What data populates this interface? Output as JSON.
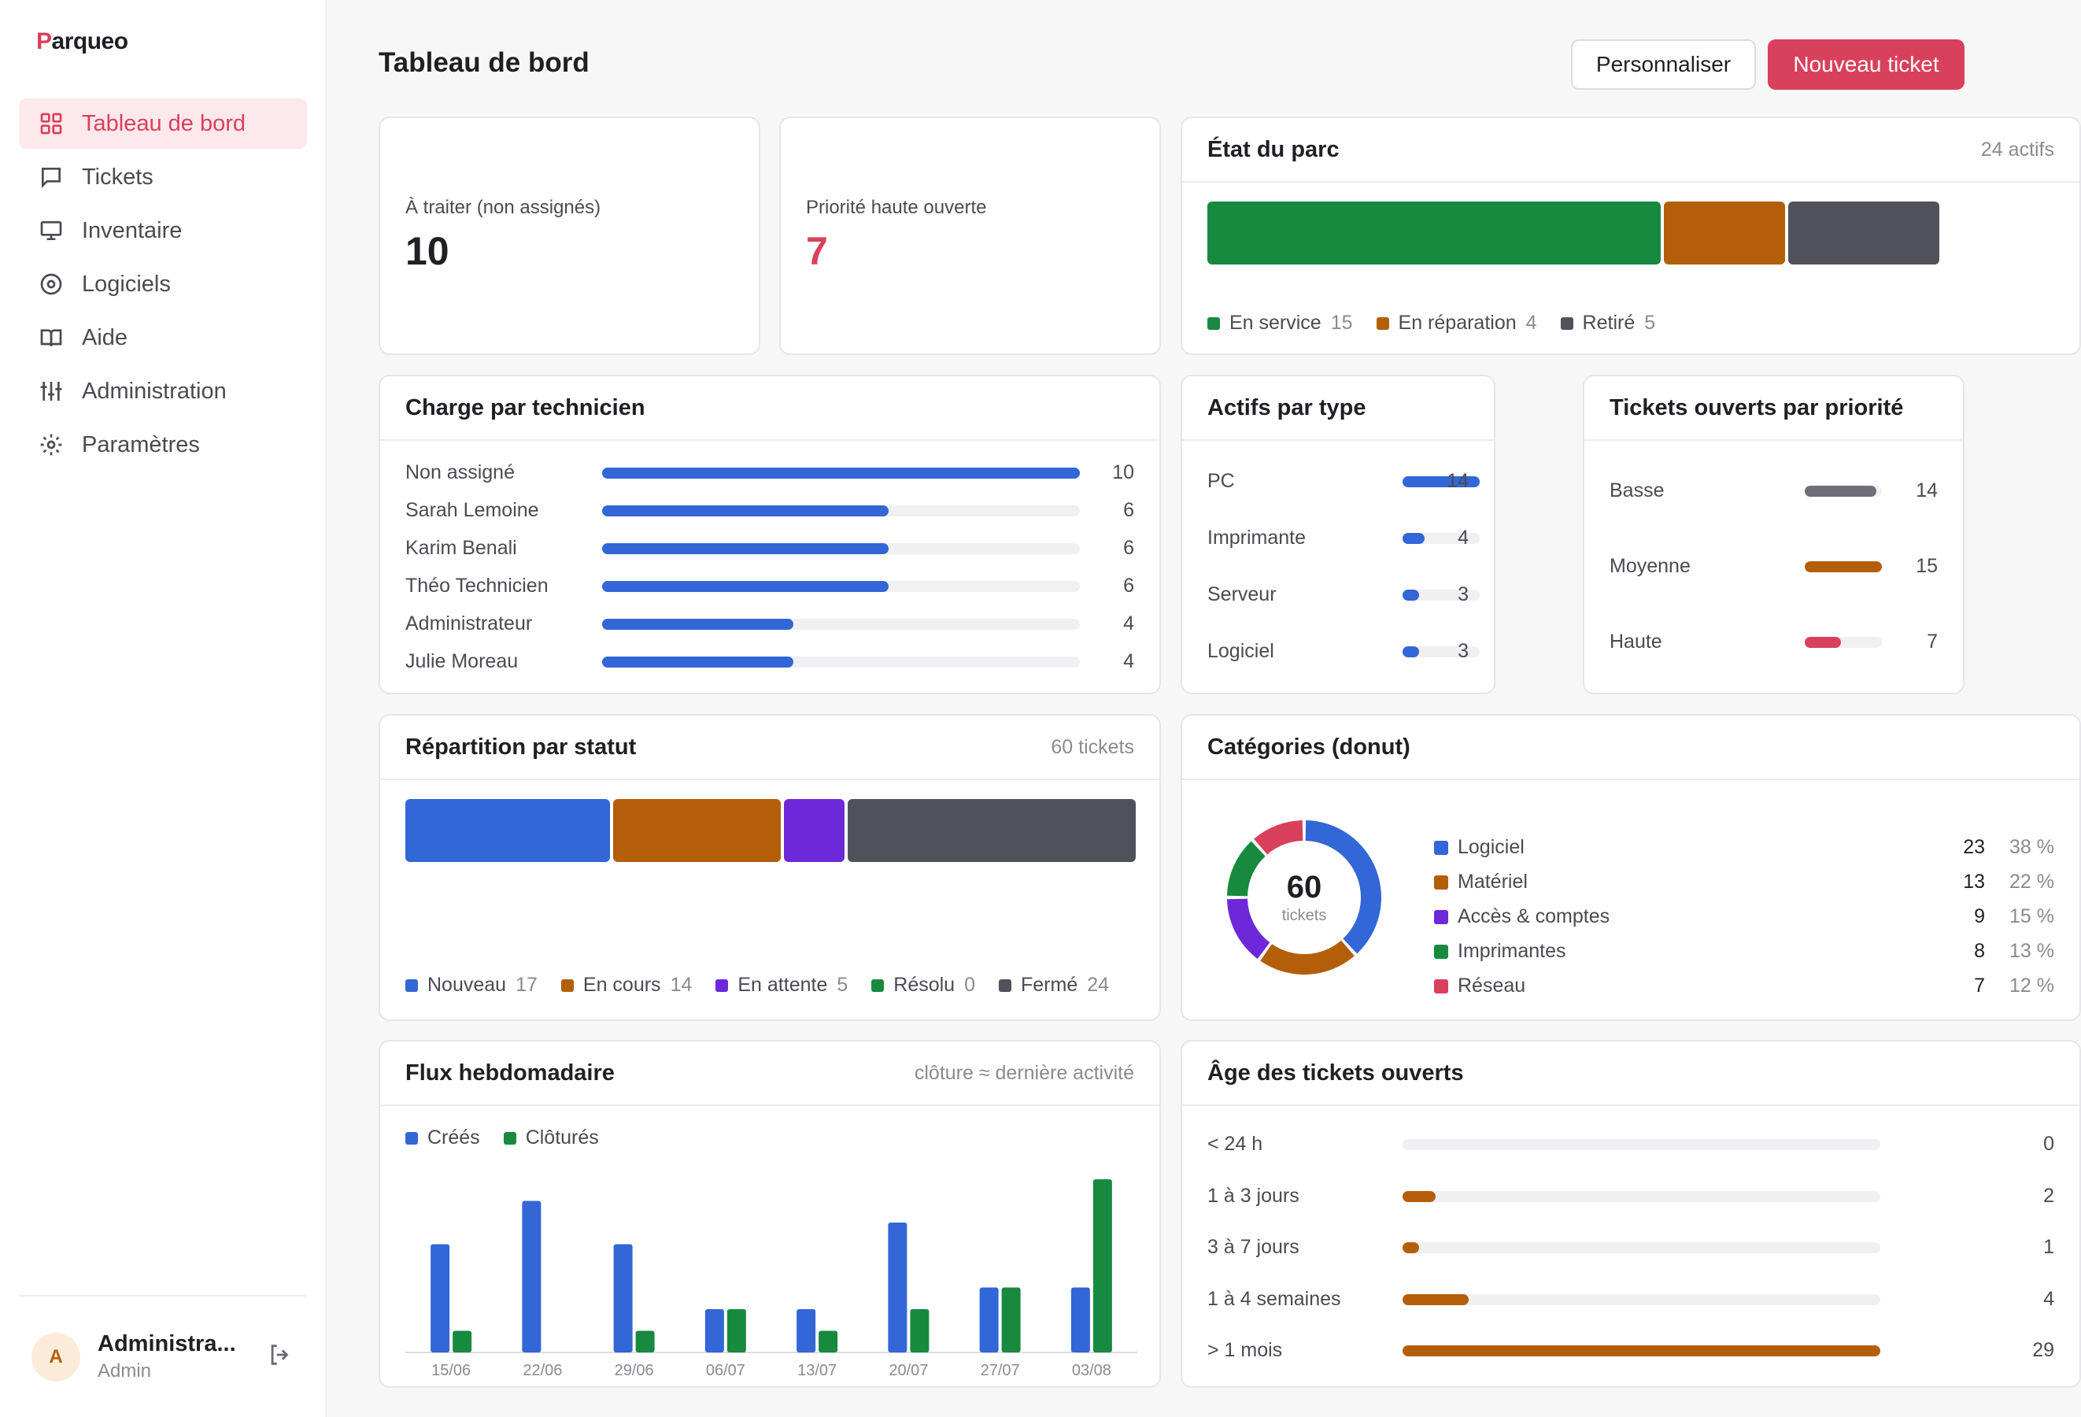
{
  "brand": {
    "mark": "P",
    "rest": "arqueo"
  },
  "nav": [
    {
      "label": "Tableau de bord",
      "icon": "grid-icon",
      "active": true
    },
    {
      "label": "Tickets",
      "icon": "chat-icon",
      "active": false
    },
    {
      "label": "Inventaire",
      "icon": "monitor-icon",
      "active": false
    },
    {
      "label": "Logiciels",
      "icon": "disc-icon",
      "active": false
    },
    {
      "label": "Aide",
      "icon": "book-icon",
      "active": false
    },
    {
      "label": "Administration",
      "icon": "sliders-icon",
      "active": false
    },
    {
      "label": "Paramètres",
      "icon": "gear-icon",
      "active": false
    }
  ],
  "user": {
    "initial": "A",
    "name": "Administra...",
    "role": "Admin"
  },
  "header": {
    "title": "Tableau de bord",
    "customize": "Personnaliser",
    "new_ticket": "Nouveau ticket"
  },
  "colors": {
    "accent": "#d9405c",
    "blue": "#3366d6",
    "orange": "#b35f0a",
    "purple": "#6d28d9",
    "green": "#178a3f",
    "gray": "#51515b"
  },
  "kpi": {
    "unassigned": {
      "label": "À traiter (non assignés)",
      "value": "10"
    },
    "high": {
      "label": "Priorité haute ouverte",
      "value": "7"
    }
  },
  "fleet": {
    "title": "État du parc",
    "meta": "24 actifs",
    "segments": [
      {
        "label": "En service",
        "count": 15,
        "color": "#178a3f"
      },
      {
        "label": "En réparation",
        "count": 4,
        "color": "#b35f0a"
      },
      {
        "label": "Retiré",
        "count": 5,
        "color": "#51515b"
      }
    ]
  },
  "workload": {
    "title": "Charge par technicien",
    "max": 10,
    "rows": [
      {
        "label": "Non assigné",
        "value": 10
      },
      {
        "label": "Sarah Lemoine",
        "value": 6
      },
      {
        "label": "Karim Benali",
        "value": 6
      },
      {
        "label": "Théo Technicien",
        "value": 6
      },
      {
        "label": "Administrateur",
        "value": 4
      },
      {
        "label": "Julie Moreau",
        "value": 4
      }
    ]
  },
  "assets_by_type": {
    "title": "Actifs par type",
    "max": 14,
    "rows": [
      {
        "label": "PC",
        "value": 14
      },
      {
        "label": "Imprimante",
        "value": 4
      },
      {
        "label": "Serveur",
        "value": 3
      },
      {
        "label": "Logiciel",
        "value": 3
      }
    ]
  },
  "priority": {
    "title": "Tickets ouverts par priorité",
    "max": 15,
    "rows": [
      {
        "label": "Basse",
        "value": 14,
        "color": "#6e6e78"
      },
      {
        "label": "Moyenne",
        "value": 15,
        "color": "#b35f0a"
      },
      {
        "label": "Haute",
        "value": 7,
        "color": "#d9405c"
      }
    ]
  },
  "status": {
    "title": "Répartition par statut",
    "meta": "60 tickets",
    "segments": [
      {
        "label": "Nouveau",
        "count": 17,
        "color": "#3366d6"
      },
      {
        "label": "En cours",
        "count": 14,
        "color": "#b35f0a"
      },
      {
        "label": "En attente",
        "count": 5,
        "color": "#6d28d9"
      },
      {
        "label": "Résolu",
        "count": 0,
        "color": "#178a3f"
      },
      {
        "label": "Fermé",
        "count": 24,
        "color": "#51515b"
      }
    ]
  },
  "categories": {
    "title": "Catégories (donut)",
    "total": "60",
    "total_label": "tickets",
    "items": [
      {
        "label": "Logiciel",
        "count": 23,
        "pct": "38 %",
        "color": "#3366d6"
      },
      {
        "label": "Matériel",
        "count": 13,
        "pct": "22 %",
        "color": "#b35f0a"
      },
      {
        "label": "Accès & comptes",
        "count": 9,
        "pct": "15 %",
        "color": "#6d28d9"
      },
      {
        "label": "Imprimantes",
        "count": 8,
        "pct": "13 %",
        "color": "#178a3f"
      },
      {
        "label": "Réseau",
        "count": 7,
        "pct": "12 %",
        "color": "#d9405c"
      }
    ]
  },
  "weekly": {
    "title": "Flux hebdomadaire",
    "meta": "clôture ≈ dernière activité",
    "legend_created": "Créés",
    "legend_closed": "Clôturés"
  },
  "chart_data": {
    "type": "bar",
    "categories": [
      "15/06",
      "22/06",
      "29/06",
      "06/07",
      "13/07",
      "20/07",
      "27/07",
      "03/08"
    ],
    "series": [
      {
        "name": "Créés",
        "values": [
          5,
          7,
          5,
          2,
          2,
          6,
          3,
          3
        ],
        "color": "#3366d6"
      },
      {
        "name": "Clôturés",
        "values": [
          1,
          0,
          1,
          2,
          1,
          2,
          3,
          8
        ],
        "color": "#178a3f"
      }
    ],
    "ylim": [
      0,
      8
    ],
    "title": "Flux hebdomadaire",
    "legend": "top-left"
  },
  "age": {
    "title": "Âge des tickets ouverts",
    "max": 29,
    "rows": [
      {
        "label": "< 24 h",
        "value": 0
      },
      {
        "label": "1 à 3 jours",
        "value": 2
      },
      {
        "label": "3 à 7 jours",
        "value": 1
      },
      {
        "label": "1 à 4 semaines",
        "value": 4
      },
      {
        "label": "> 1 mois",
        "value": 29
      }
    ]
  }
}
